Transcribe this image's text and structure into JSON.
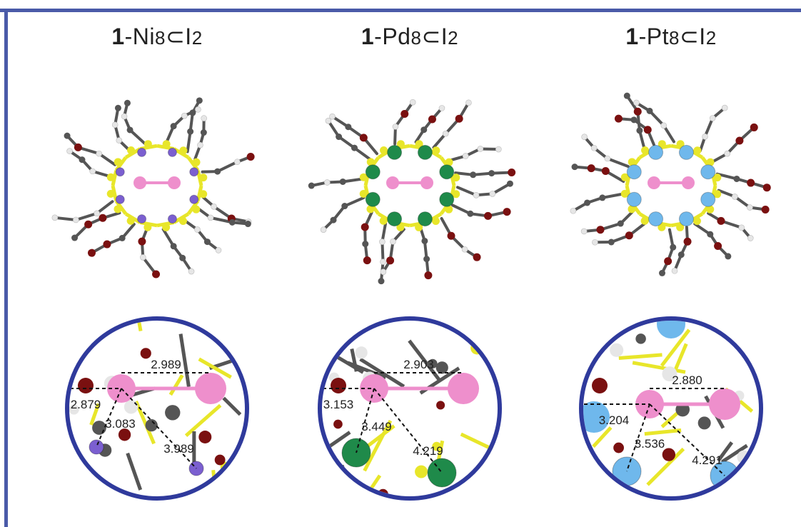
{
  "panels": [
    {
      "id": "ni",
      "title_prefix": "1",
      "title_metal": "-Ni",
      "title_sub": "8",
      "title_suffix": "⊂I",
      "title_sub2": "2",
      "metal_color": "#7b5fd0",
      "iodine_iodine": "2.989",
      "d1": "2.879",
      "d2": "3.083",
      "d3": "3.989"
    },
    {
      "id": "pd",
      "title_prefix": "1",
      "title_metal": "-Pd",
      "title_sub": "8",
      "title_suffix": "⊂I",
      "title_sub2": "2",
      "metal_color": "#1f8a4a",
      "iodine_iodine": "2.903",
      "d1": "3.153",
      "d2": "3.449",
      "d3": "4.219"
    },
    {
      "id": "pt",
      "title_prefix": "1",
      "title_metal": "-Pt",
      "title_sub": "8",
      "title_suffix": "⊂I",
      "title_sub2": "2",
      "metal_color": "#6fb8ec",
      "iodine_iodine": "2.880",
      "d1": "3.204",
      "d2": "3.536",
      "d3": "4.291"
    }
  ],
  "colors": {
    "frame": "#4a5aa8",
    "iodine": "#ee8fcc",
    "sulfur": "#e8e62a",
    "oxygen": "#7a1010",
    "carbon": "#555555",
    "hydrogen": "#e6e6e6",
    "circle_border": "#2f3a9c"
  }
}
